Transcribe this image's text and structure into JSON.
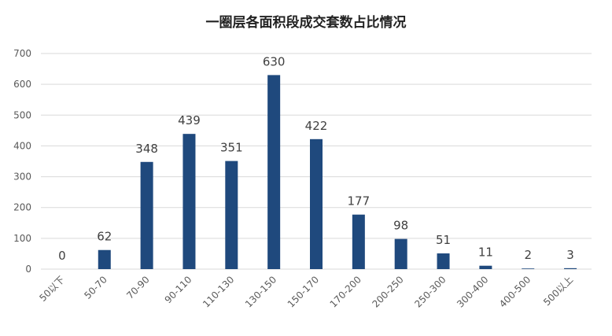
{
  "title": "一圈层各面积段成交套数占比情况",
  "chart_data": {
    "type": "bar",
    "title": "一圈层各面积段成交套数占比情况",
    "categories": [
      "50以下",
      "50-70",
      "70-90",
      "90-110",
      "110-130",
      "130-150",
      "150-170",
      "170-200",
      "200-250",
      "250-300",
      "300-400",
      "400-500",
      "500以上"
    ],
    "values": [
      0,
      62,
      348,
      439,
      351,
      630,
      422,
      177,
      98,
      51,
      11,
      2,
      3
    ],
    "ylim": [
      0,
      700
    ],
    "yticks": [
      0,
      100,
      200,
      300,
      400,
      500,
      600,
      700
    ],
    "grid": true,
    "bar_color": "#1f497d",
    "xlabel": "",
    "ylabel": ""
  }
}
